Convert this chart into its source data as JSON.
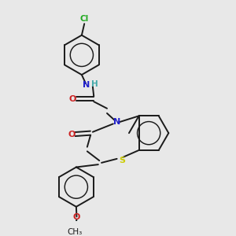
{
  "bg_color": "#e8e8e8",
  "bond_color": "#1a1a1a",
  "bond_width": 1.4,
  "figsize": [
    3.0,
    3.0
  ],
  "dpi": 100,
  "xlim": [
    0.0,
    1.0
  ],
  "ylim": [
    0.0,
    1.0
  ],
  "colors": {
    "Cl": "#22aa22",
    "N": "#2222cc",
    "H": "#44aaaa",
    "O": "#cc2222",
    "S": "#cccc00",
    "C": "#1a1a1a"
  }
}
